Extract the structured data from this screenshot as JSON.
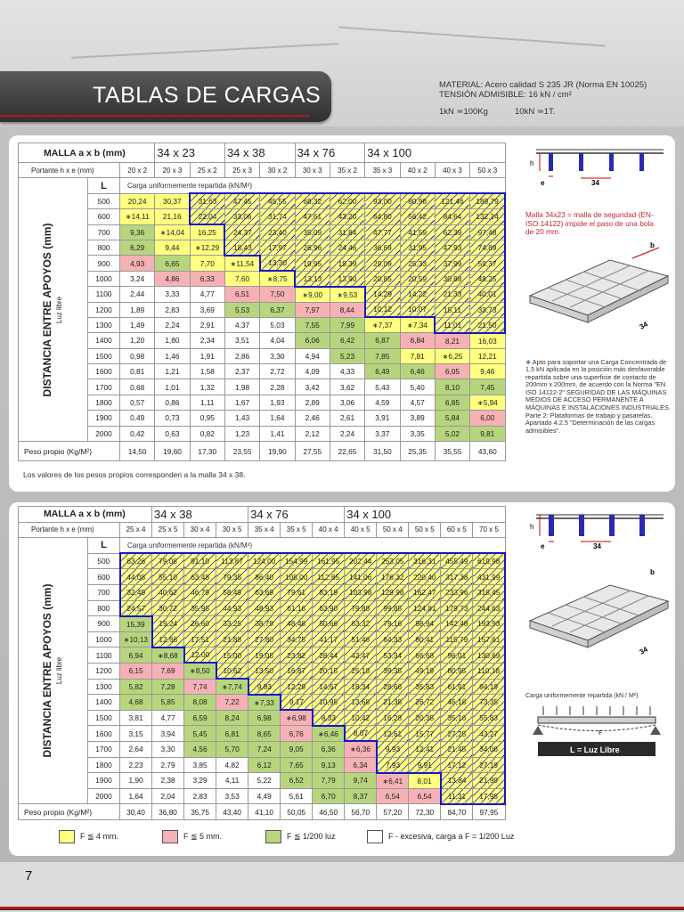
{
  "header": {
    "title": "TABLAS DE CARGAS",
    "material": "MATERIAL: Acero calidad S 235 JR (Norma EN 10025)",
    "tension": "TENSIÓN ADMISIBLE: 16 kN / cm²",
    "conv1": "1kN ≃100Kg",
    "conv2": "10kN ≃1T."
  },
  "table1": {
    "malla_label": "MALLA a x b (mm)",
    "series": [
      "34 x 23",
      "34 x 38",
      "34 x 76",
      "34 x 100"
    ],
    "portante_label": "Portante h x e (mm)",
    "columns": [
      "20 x 2",
      "20 x 3",
      "25 x 2",
      "25 x 3",
      "30 x 2",
      "30 x 3",
      "35 x 2",
      "35 x 3",
      "40 x 2",
      "40 x 3",
      "50 x 3"
    ],
    "l_label": "L",
    "carga_label": "Carga uniformemente repartida (kN/M²)",
    "side_label": "DISTANCIA ENTRE APOYOS (mm)",
    "side_sub": "Luz libre",
    "rows": [
      {
        "L": "500",
        "v": [
          "20,24",
          "30,37",
          "31,63",
          "47,45",
          "45,55",
          "68,32",
          "62,00",
          "93,00",
          "80,98",
          "121,46",
          "189,79"
        ]
      },
      {
        "L": "600",
        "v": [
          "∗14,11",
          "21,16",
          "22,04",
          "33,06",
          "31,74",
          "47,61",
          "43,20",
          "64,80",
          "56,42",
          "84,64",
          "132,24"
        ]
      },
      {
        "L": "700",
        "v": [
          "9,36",
          "∗14,04",
          "16,25",
          "24,37",
          "23,40",
          "35,09",
          "31,84",
          "47,77",
          "41,59",
          "62,39",
          "97,48"
        ]
      },
      {
        "L": "800",
        "v": [
          "6,29",
          "9,44",
          "∗12,29",
          "18,43",
          "17,97",
          "26,96",
          "24,46",
          "36,69",
          "31,95",
          "47,93",
          "74,89"
        ]
      },
      {
        "L": "900",
        "v": [
          "4,93",
          "6,65",
          "7,70",
          "∗11,54",
          "13,30",
          "19,95",
          "19,39",
          "29,09",
          "25,33",
          "37,99",
          "59,37"
        ]
      },
      {
        "L": "1000",
        "v": [
          "3,24",
          "4,86",
          "6,33",
          "7,60",
          "∗8,75",
          "13,13",
          "13,90",
          "20,85",
          "20,59",
          "30,88",
          "48,25"
        ]
      },
      {
        "L": "1100",
        "v": [
          "2,44",
          "3,33",
          "4,77",
          "6,51",
          "7,50",
          "∗9,00",
          "∗9,53",
          "14,29",
          "14,22",
          "21,33",
          "40,01"
        ]
      },
      {
        "L": "1200",
        "v": [
          "1,89",
          "2,83",
          "3,69",
          "5,53",
          "6,37",
          "7,97",
          "8,44",
          "10,12",
          "10,07",
          "15,11",
          "33,73"
        ]
      },
      {
        "L": "1300",
        "v": [
          "1,49",
          "2,24",
          "2,91",
          "4,37",
          "5,03",
          "7,55",
          "7,99",
          "∗7,37",
          "∗7,34",
          "11,01",
          "21,50"
        ]
      },
      {
        "L": "1400",
        "v": [
          "1,20",
          "1,80",
          "2,34",
          "3,51",
          "4,04",
          "6,06",
          "6,42",
          "6,87",
          "6,84",
          "8,21",
          "16,03"
        ]
      },
      {
        "L": "1500",
        "v": [
          "0,98",
          "1,46",
          "1,91",
          "2,86",
          "3,30",
          "4,94",
          "5,23",
          "7,85",
          "7,81",
          "∗6,25",
          "12,21"
        ]
      },
      {
        "L": "1600",
        "v": [
          "0,81",
          "1,21",
          "1,58",
          "2,37",
          "2,72",
          "4,09",
          "4,33",
          "6,49",
          "6,46",
          "6,05",
          "9,46"
        ]
      },
      {
        "L": "1700",
        "v": [
          "0,68",
          "1,01",
          "1,32",
          "1,98",
          "2,28",
          "3,42",
          "3,62",
          "5,43",
          "5,40",
          "8,10",
          "7,45"
        ]
      },
      {
        "L": "1800",
        "v": [
          "0,57",
          "0,86",
          "1,11",
          "1,67",
          "1,93",
          "2,89",
          "3,06",
          "4,59",
          "4,57",
          "6,85",
          "∗5,94"
        ]
      },
      {
        "L": "1900",
        "v": [
          "0,49",
          "0,73",
          "0,95",
          "1,43",
          "1,64",
          "2,46",
          "2,61",
          "3,91",
          "3,89",
          "5,84",
          "6,00"
        ]
      },
      {
        "L": "2000",
        "v": [
          "0,42",
          "0,63",
          "0,82",
          "1,23",
          "1,41",
          "2,12",
          "2,24",
          "3,37",
          "3,35",
          "5,02",
          "9,81"
        ]
      }
    ],
    "peso_label": "Peso propio (Kg/M²)",
    "peso": [
      "14,50",
      "19,60",
      "17,30",
      "23,55",
      "19,90",
      "27,55",
      "22,65",
      "31,50",
      "25,35",
      "35,55",
      "43,60"
    ],
    "note": "Los valores de los pesos propios corresponden a la malla 34 x 38."
  },
  "table2": {
    "malla_label": "MALLA a x b (mm)",
    "series": [
      "34 x 38",
      "34 x 76",
      "34 x 100"
    ],
    "portante_label": "Portante h x e (mm)",
    "columns": [
      "25 x 4",
      "25 x 5",
      "30 x 4",
      "30 x 5",
      "35 x 4",
      "35 x 5",
      "40 x 4",
      "40 x 5",
      "50 x 4",
      "50 x 5",
      "60 x 5",
      "70 x 5"
    ],
    "l_label": "L",
    "carga_label": "Carga uniformemente repartida (kN/M²)",
    "side_label": "DISTANCIA ENTRE APOYOS (mm)",
    "side_sub": "Luz libre",
    "rows": [
      {
        "L": "500",
        "v": [
          "63,26",
          "79,08",
          "91,10",
          "113,87",
          "124,00",
          "154,99",
          "161,95",
          "202,44",
          "253,05",
          "316,31",
          "455,49",
          "619,98"
        ]
      },
      {
        "L": "600",
        "v": [
          "44,08",
          "55,10",
          "63,48",
          "79,35",
          "86,40",
          "108,00",
          "112,85",
          "141,06",
          "176,32",
          "220,40",
          "317,38",
          "431,99"
        ]
      },
      {
        "L": "700",
        "v": [
          "32,49",
          "40,62",
          "46,79",
          "58,49",
          "63,69",
          "79,61",
          "83,19",
          "103,98",
          "129,98",
          "162,47",
          "233,96",
          "318,45"
        ]
      },
      {
        "L": "800",
        "v": [
          "24,57",
          "30,72",
          "35,95",
          "44,93",
          "48,93",
          "61,16",
          "63,90",
          "79,88",
          "99,85",
          "124,81",
          "179,73",
          "244,63"
        ]
      },
      {
        "L": "900",
        "v": [
          "15,39",
          "19,24",
          "26,60",
          "33,25",
          "38,79",
          "48,48",
          "50,66",
          "63,32",
          "79,16",
          "98,94",
          "142,48",
          "193,93"
        ]
      },
      {
        "L": "1000",
        "v": [
          "∗10,13",
          "12,66",
          "17,51",
          "21,88",
          "27,80",
          "34,75",
          "41,17",
          "51,46",
          "64,33",
          "80,41",
          "115,79",
          "157,61"
        ]
      },
      {
        "L": "1100",
        "v": [
          "6,94",
          "∗8,68",
          "12,00",
          "15,00",
          "19,05",
          "23,82",
          "28,44",
          "42,47",
          "53,34",
          "66,68",
          "96,01",
          "130,69"
        ]
      },
      {
        "L": "1200",
        "v": [
          "6,15",
          "7,69",
          "∗8,50",
          "10,62",
          "13,50",
          "16,87",
          "20,15",
          "25,18",
          "39,35",
          "49,19",
          "80,95",
          "110,18"
        ]
      },
      {
        "L": "1300",
        "v": [
          "5,82",
          "7,28",
          "7,74",
          "∗7,74",
          "9,83",
          "12,29",
          "14,67",
          "18,34",
          "28,66",
          "35,83",
          "61,91",
          "94,19"
        ]
      },
      {
        "L": "1400",
        "v": [
          "4,68",
          "5,85",
          "8,08",
          "7,22",
          "∗7,33",
          "9,17",
          "10,95",
          "13,68",
          "21,38",
          "26,72",
          "46,18",
          "73,35"
        ]
      },
      {
        "L": "1500",
        "v": [
          "3,81",
          "4,77",
          "6,59",
          "8,24",
          "6,98",
          "∗6,98",
          "8,33",
          "10,42",
          "16,28",
          "20,35",
          "35,16",
          "55,83"
        ]
      },
      {
        "L": "1600",
        "v": [
          "3,15",
          "3,94",
          "5,45",
          "6,81",
          "8,65",
          "6,76",
          "∗6,46",
          "8,07",
          "12,61",
          "15,77",
          "27,25",
          "43,27"
        ]
      },
      {
        "L": "1700",
        "v": [
          "2,64",
          "3,30",
          "4,56",
          "5,70",
          "7,24",
          "9,05",
          "6,36",
          "∗6,36",
          "9,93",
          "12,41",
          "21,45",
          "34,06"
        ]
      },
      {
        "L": "1800",
        "v": [
          "2,23",
          "2,79",
          "3,85",
          "4,82",
          "6,12",
          "7,65",
          "9,13",
          "6,34",
          "7,93",
          "9,91",
          "17,12",
          "27,19"
        ]
      },
      {
        "L": "1900",
        "v": [
          "1,90",
          "2,38",
          "3,29",
          "4,11",
          "5,22",
          "6,52",
          "7,79",
          "9,74",
          "∗6,41",
          "8,01",
          "13,84",
          "21,99"
        ]
      },
      {
        "L": "2000",
        "v": [
          "1,64",
          "2,04",
          "2,83",
          "3,53",
          "4,49",
          "5,61",
          "6,70",
          "8,37",
          "6,54",
          "6,54",
          "11,31",
          "17,95"
        ]
      }
    ],
    "peso_label": "Peso propio (Kg/M²)",
    "peso": [
      "30,40",
      "36,80",
      "35,75",
      "43,40",
      "41,10",
      "50,05",
      "46,50",
      "56,70",
      "57,20",
      "72,30",
      "84,70",
      "97,95"
    ]
  },
  "side1": {
    "red_note": "Malla 34x23 = malla de seguridad (EN-ISO 14122) impide el paso de una bola de 20 mm.",
    "star_note": "Apto para soportar una Carga Concentrada de 1,5 kN aplicada en la posición más desfavorable repartida sobre una superficie de contacto de 200mm x 200mm, de acuerdo con la Norma \"EN ISO 14122-2\" SEGURIDAD DE LAS MÁQUINAS MEDIOS DE ACCESO PERMANENTE A MÁQUINAS E INSTALACIONES INDUSTRIALES. Parte 2: Plataformas de trabajo y pasarelas. Apartado 4.2.5 \"Determinación de las cargas admisibles\".",
    "dim_h": "h",
    "dim_e": "e",
    "dim_34": "34",
    "dim_b": "b"
  },
  "side2": {
    "dim_h": "h",
    "dim_e": "e",
    "dim_34": "34",
    "dim_b": "b",
    "carga_label": "Carga uniformemente repartida (kN / M²)",
    "f_label": "F",
    "luz_label": "L = Luz Libre"
  },
  "legend": [
    {
      "color": "#ffff80",
      "text": "F ≦ 4 mm."
    },
    {
      "color": "#f6b1b4",
      "text": "F ≦ 5 mm."
    },
    {
      "color": "#b7d57d",
      "text": "F ≦ 1/200 luz"
    },
    {
      "color": "#ffffff",
      "text": "F - excesiva, carga a F = 1/200 Luz"
    }
  ],
  "page_number": "7",
  "colors": {
    "yellow": "#ffff80",
    "pink": "#f6b1b4",
    "green": "#b7d57d",
    "blue_outline": "#1515c8",
    "brand_red": "#b01818"
  }
}
